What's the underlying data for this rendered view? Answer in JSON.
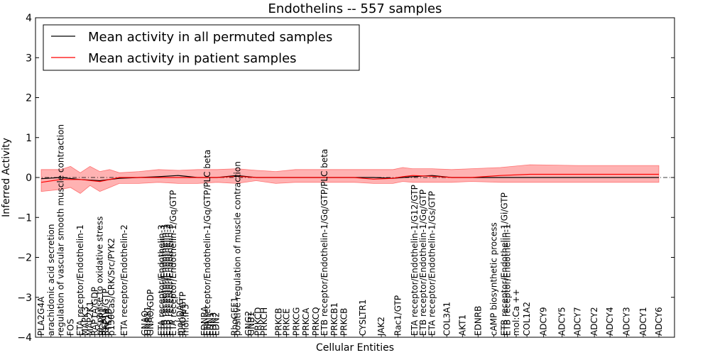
{
  "chart_data": {
    "type": "line",
    "title": "Endothelins -- 557 samples",
    "xlabel": "Cellular Entities",
    "ylabel": "Inferred Activity",
    "ylim": [
      -4,
      4
    ],
    "yticks": [
      -4,
      -3,
      -2,
      -1,
      0,
      1,
      2,
      3,
      4
    ],
    "ytick_labels": [
      "−4",
      "−3",
      "−2",
      "−1",
      "0",
      "1",
      "2",
      "3",
      "4"
    ],
    "legend": {
      "placement": "top-left",
      "entries": [
        {
          "label": "Mean activity in all permuted samples",
          "color": "#000000"
        },
        {
          "label": "Mean activity in patient samples",
          "color": "#ff0000"
        }
      ]
    },
    "categories": [
      "PLA2G4A",
      "arachidonic acid secretion",
      "regulation of vascular smooth muscle contraction",
      "FOS",
      "ETA receptor/Endothelin-1",
      "MAPK3",
      "MAP2K1",
      "RAP1A/GDP",
      "response to oxidative stress",
      "BCAR1",
      "RAP1A/GTP",
      "PTK2B",
      "p130Cas/CRK/Src/PYK2",
      "ETA receptor/Endothelin-2",
      "GNAQ",
      "GNA11",
      "GNAO/GDP",
      "ETA receptor/Endothelin-3",
      "ETB receptor/Endothelin-1",
      "ETB receptor/Endothelin-2",
      "ETB receptor/Endothelin-3",
      "ETA receptor/Endothelin-1/Gq/GTP",
      "mol:DAG",
      "RHOA/GTP",
      "mol:IP3",
      "EDNRA",
      "ETA receptor/Endothelin-1/Gq/GTP/PLC beta",
      "EDN1",
      "EDN3",
      "EDN2",
      "RhoGEF1",
      "positive regulation of muscle contraction",
      "GNG2",
      "GNB1",
      "PRKCD",
      "PRKCH",
      "PRKCB",
      "PRKCE",
      "PRKCG",
      "PRKCA",
      "PRKCQ",
      "ETB receptor/Endothelin-1/Gq/GTP/PLC beta",
      "PRKCB1",
      "PRKCB",
      "CYSLTR1",
      "JAK2",
      "Rac1/GTP",
      "ETA receptor/Endothelin-1/G12/GTP",
      "ETB receptor/Endothelin-1/Gq/GTP",
      "ETA receptor/Endothelin-1/Gs/GTP",
      "COL3A1",
      "AKT1",
      "EDNRB",
      "cAMP biosynthetic process",
      "ETB receptor/Endothelin-1/Gi/GTP",
      "ETB receptor/Endothelin-1",
      "mol:Ca ++",
      "COL1A2",
      "ADCY9",
      "ADCY5",
      "ADCY7",
      "ADCY2",
      "ADCY4",
      "ADCY3",
      "ADCY1",
      "ADCY6"
    ],
    "label_positions": [
      0,
      1,
      2,
      3,
      4,
      4.5,
      5,
      5.5,
      6,
      6.3,
      6.6,
      6.9,
      7.2,
      8.5,
      10.6,
      10.9,
      11.2,
      12.3,
      12.6,
      12.9,
      13.2,
      13.5,
      14.2,
      14.5,
      14.8,
      16.7,
      17,
      17.3,
      17.6,
      17.9,
      19.8,
      20.1,
      21.2,
      21.5,
      22.2,
      22.8,
      24.3,
      25.1,
      26.1,
      27.1,
      28.1,
      29,
      30,
      31,
      32.9,
      34.8,
      36.5,
      38.2,
      39.1,
      40,
      41.5,
      43.1,
      44.7,
      46.3,
      47.4,
      47.7,
      48.6,
      49.7,
      51.4,
      53.3,
      54.9,
      56.6,
      58.2,
      59.9,
      61.6,
      63.2
    ],
    "x_range": [
      -0.5,
      64
    ],
    "series": [
      {
        "name": "Mean activity in all permuted samples",
        "color": "#000000",
        "x": [
          0,
          2,
          4,
          6,
          8,
          10,
          12,
          14,
          16,
          18,
          20,
          22,
          24,
          26,
          28,
          30,
          32,
          34,
          36,
          37,
          38,
          40,
          42,
          44,
          47,
          50,
          55,
          60,
          63.2
        ],
        "values": [
          -0.03,
          0.0,
          -0.05,
          -0.08,
          -0.02,
          0.0,
          0.02,
          0.05,
          0.0,
          0.0,
          0.05,
          0.0,
          0.0,
          0.0,
          0.0,
          0.0,
          0.0,
          0.0,
          -0.02,
          0.0,
          0.02,
          0.05,
          0.0,
          0.0,
          0.0,
          0.0,
          0.0,
          0.0,
          0.0
        ]
      },
      {
        "name": "Mean activity in patient samples",
        "color": "#ff0000",
        "x": [
          0,
          2,
          4,
          6,
          8,
          10,
          12,
          14,
          16,
          18,
          20,
          22,
          24,
          26,
          28,
          30,
          32,
          34,
          36,
          37,
          38,
          40,
          42,
          44,
          47,
          50,
          55,
          60,
          63.2
        ],
        "values": [
          -0.12,
          -0.05,
          -0.05,
          -0.1,
          0.0,
          0.0,
          0.0,
          0.0,
          0.0,
          0.0,
          0.03,
          0.0,
          0.0,
          0.0,
          0.0,
          0.0,
          0.0,
          -0.04,
          -0.02,
          0.02,
          0.05,
          0.03,
          0.0,
          0.0,
          0.05,
          0.08,
          0.08,
          0.08,
          0.08
        ]
      }
    ],
    "band": {
      "color": "#ff0000",
      "x": [
        0,
        2,
        3,
        4,
        5,
        6,
        7,
        8,
        10,
        12,
        14,
        16,
        18,
        20,
        22,
        24,
        26,
        28,
        30,
        32,
        34,
        36,
        37,
        38,
        40,
        42,
        44,
        47,
        50,
        55,
        60,
        63.2
      ],
      "lower": [
        -0.35,
        -0.3,
        -0.25,
        -0.4,
        -0.2,
        -0.35,
        -0.25,
        -0.15,
        -0.15,
        -0.12,
        -0.15,
        -0.15,
        -0.12,
        -0.15,
        -0.08,
        -0.15,
        -0.12,
        -0.12,
        -0.12,
        -0.12,
        -0.15,
        -0.15,
        -0.1,
        -0.12,
        -0.12,
        -0.12,
        -0.1,
        -0.12,
        -0.12,
        -0.12,
        -0.12,
        -0.12
      ],
      "upper": [
        0.2,
        0.2,
        0.28,
        0.12,
        0.28,
        0.15,
        0.2,
        0.12,
        0.15,
        0.2,
        0.18,
        0.2,
        0.2,
        0.22,
        0.18,
        0.15,
        0.2,
        0.2,
        0.2,
        0.2,
        0.2,
        0.2,
        0.25,
        0.22,
        0.22,
        0.2,
        0.22,
        0.25,
        0.32,
        0.3,
        0.3,
        0.3
      ]
    },
    "grid": false
  }
}
